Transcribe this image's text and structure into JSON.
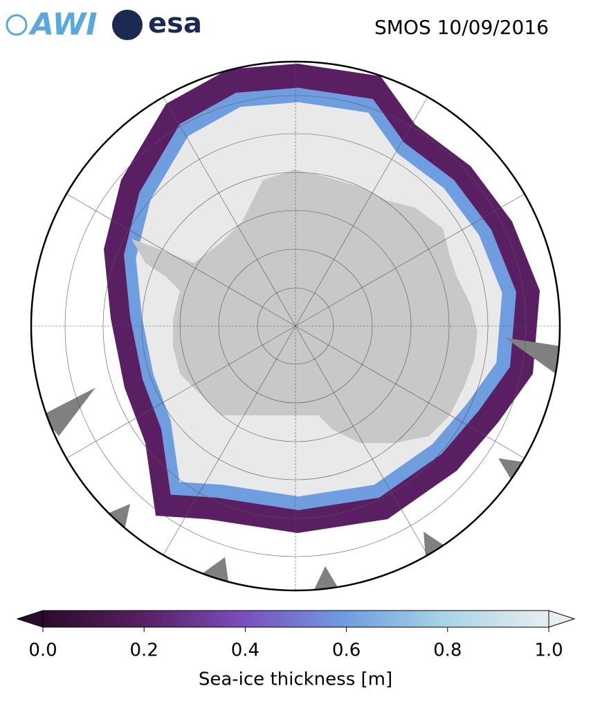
{
  "header": {
    "logos": [
      "AWI",
      "esa"
    ],
    "title": "SMOS 10/09/2016"
  },
  "colorbar": {
    "label": "Sea-ice thickness [m]",
    "lim": [
      0,
      1
    ],
    "ticks": [
      {
        "value": 0,
        "label": "0.0"
      },
      {
        "value": 0.2,
        "label": "0.2"
      },
      {
        "value": 0.4,
        "label": "0.4"
      },
      {
        "value": 0.6,
        "label": "0.6"
      },
      {
        "value": 0.8,
        "label": "0.8"
      },
      {
        "value": 1,
        "label": "1.0"
      }
    ],
    "colors": [
      "#2b0b2c",
      "#5a1f63",
      "#7a4fbf",
      "#6f9ee0",
      "#a9d6e6",
      "#e6eef0"
    ]
  }
}
